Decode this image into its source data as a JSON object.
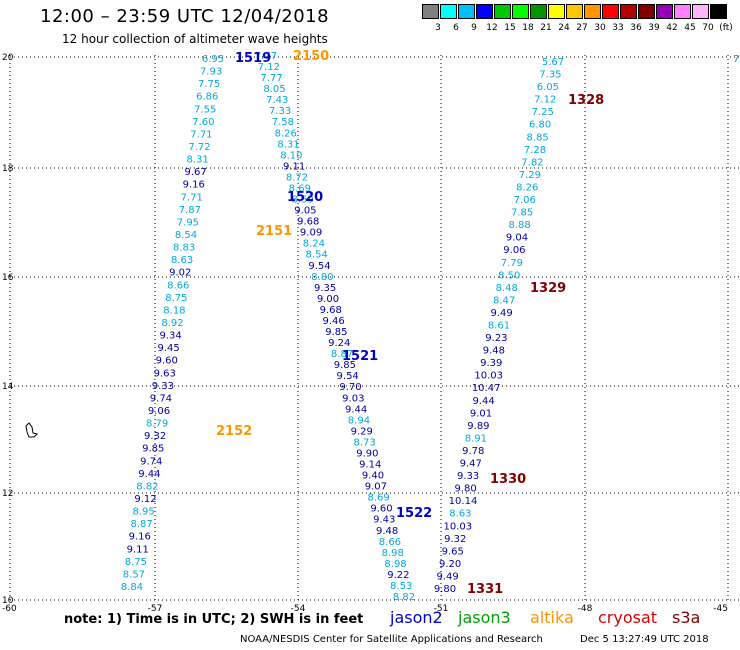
{
  "header": {
    "title": "12:00 – 23:59 UTC 12/04/2018",
    "subtitle": "12 hour collection of altimeter wave heights"
  },
  "legend": {
    "colors": [
      "#808080",
      "#00ffff",
      "#00bfff",
      "#0000ff",
      "#00c800",
      "#00ff00",
      "#009600",
      "#ffff00",
      "#ffc800",
      "#ff9600",
      "#ff0000",
      "#b40000",
      "#800000",
      "#9600b4",
      "#ff80ff",
      "#ffb4ff",
      "#000000"
    ],
    "labels": [
      "3",
      "6",
      "9",
      "12",
      "15",
      "18",
      "21",
      "24",
      "27",
      "30",
      "33",
      "36",
      "39",
      "42",
      "45",
      "70",
      "(ft)"
    ]
  },
  "map": {
    "lon_ticks": [
      "-60",
      "-57",
      "-54",
      "-51",
      "-48",
      "-45"
    ],
    "lat_ticks": [
      "20",
      "18",
      "16",
      "14",
      "12",
      "10"
    ],
    "passes": [
      {
        "id": "1519",
        "color": "#0000c8"
      },
      {
        "id": "2150",
        "color": "#ff9600"
      },
      {
        "id": "1328",
        "color": "#800000"
      },
      {
        "id": "1520",
        "color": "#0000c8"
      },
      {
        "id": "2151",
        "color": "#ff9600"
      },
      {
        "id": "1329",
        "color": "#800000"
      },
      {
        "id": "1521",
        "color": "#0000c8"
      },
      {
        "id": "2152",
        "color": "#ff9600"
      },
      {
        "id": "1330",
        "color": "#800000"
      },
      {
        "id": "1522",
        "color": "#0000c8"
      },
      {
        "id": "1331",
        "color": "#800000"
      }
    ],
    "colA": [
      "6.95",
      "7.93",
      "7.75",
      "6.86",
      "7.55",
      "7.60",
      "7.71",
      "7.72",
      "8.31",
      "9.67",
      "9.16",
      "7.71",
      "7.87",
      "7.95",
      "8.54",
      "8.83",
      "8.63",
      "9.02",
      "8.66",
      "8.75",
      "8.18",
      "8.92",
      "9.34",
      "9.45",
      "9.60",
      "9.63",
      "9.33",
      "9.74",
      "9.06",
      "8.79",
      "9.32",
      "9.85",
      "9.74",
      "9.44",
      "8.82",
      "9.12",
      "8.95",
      "8.87",
      "9.16",
      "9.11",
      "8.75",
      "8.57",
      "8.84"
    ],
    "colB": [
      "7.77",
      "7.12",
      "7.77",
      "8.05",
      "7.43",
      "7.33",
      "7.58",
      "8.26",
      "8.31",
      "8.10",
      "9.11",
      "8.72",
      "8.69",
      "8.59",
      "9.05",
      "9.68",
      "9.09",
      "8.24",
      "8.54",
      "9.54",
      "8.80",
      "9.35",
      "9.00",
      "9.68",
      "9.46",
      "9.85",
      "9.24",
      "8.87",
      "9.85",
      "9.54",
      "9.70",
      "9.03",
      "9.44",
      "8.94",
      "9.29",
      "8.73",
      "9.90",
      "9.14",
      "9.40",
      "9.07",
      "8.69",
      "9.60",
      "9.43",
      "9.48",
      "8.66",
      "8.98",
      "8.98",
      "9.22",
      "8.53",
      "8.82"
    ],
    "colC": [
      "5.67",
      "7.35",
      "6.05",
      "7.12",
      "7.25",
      "6.80",
      "8.85",
      "7.28",
      "7.82",
      "7.29",
      "8.26",
      "7.06",
      "7.85",
      "8.88",
      "9.04",
      "9.06",
      "7.79",
      "8.50",
      "8.48",
      "8.47",
      "9.49",
      "8.61",
      "9.23",
      "9.48",
      "9.39",
      "10.03",
      "10.47",
      "9.44",
      "9.01",
      "9.89",
      "8.91",
      "9.78",
      "9.47",
      "9.33",
      "9.80",
      "10.14",
      "8.63",
      "10.03",
      "9.32",
      "9.65",
      "9.20",
      "9.49",
      "9.80"
    ],
    "edge_value": "7"
  },
  "footer": {
    "note": "note:  1) Time is in UTC;  2) SWH is in feet",
    "satellites": [
      {
        "name": "jason2",
        "color": "#0000c8"
      },
      {
        "name": "jason3",
        "color": "#00a000"
      },
      {
        "name": "altika",
        "color": "#ff9600"
      },
      {
        "name": "cryosat",
        "color": "#e00000"
      },
      {
        "name": "s3a",
        "color": "#800000"
      }
    ],
    "credit": "NOAA/NESDIS Center for Satellite Applications and Research",
    "timestamp": "Dec  5 13:27:49 UTC 2018"
  }
}
